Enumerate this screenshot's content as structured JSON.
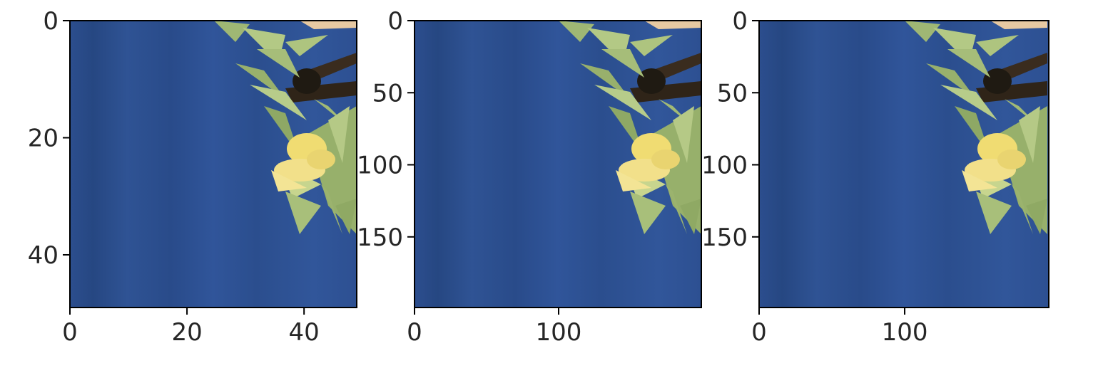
{
  "chart_data": [
    {
      "type": "image",
      "panel": 1,
      "xlim": [
        0,
        49
      ],
      "ylim": [
        49,
        0
      ],
      "xticks": [
        0,
        20,
        40
      ],
      "yticks": [
        0,
        20,
        40
      ],
      "xtick_labels": [
        "0",
        "20",
        "40"
      ],
      "ytick_labels": [
        "0",
        "20",
        "40"
      ],
      "image_content": "blue sky with yellow-green foliage and flowers at right edge",
      "sky_color": "#2c4e8c",
      "title": "",
      "xlabel": "",
      "ylabel": ""
    },
    {
      "type": "image",
      "panel": 2,
      "xlim": [
        0,
        199
      ],
      "ylim": [
        199,
        0
      ],
      "xticks": [
        0,
        100
      ],
      "yticks": [
        0,
        50,
        100,
        150
      ],
      "xtick_labels": [
        "0",
        "100"
      ],
      "ytick_labels": [
        "0",
        "50",
        "100",
        "150"
      ],
      "image_content": "upscaled blue sky with yellow-green foliage and flowers at right edge",
      "sky_color": "#2c4e8c",
      "title": "",
      "xlabel": "",
      "ylabel": ""
    },
    {
      "type": "image",
      "panel": 3,
      "xlim": [
        0,
        199
      ],
      "ylim": [
        199,
        0
      ],
      "xticks": [
        0,
        100
      ],
      "yticks": [
        0,
        50,
        100,
        150
      ],
      "xtick_labels": [
        "0",
        "100"
      ],
      "ytick_labels": [
        "0",
        "50",
        "100",
        "150"
      ],
      "image_content": "upscaled blue sky with yellow-green foliage and flowers at right edge",
      "sky_color": "#2c4e8c",
      "title": "",
      "xlabel": "",
      "ylabel": ""
    }
  ],
  "colors": {
    "sky_dark": "#2a4a86",
    "sky_light": "#32579a",
    "leaf": "#a9c07a",
    "leaf_dark": "#6d8a4a",
    "flower": "#f0de7a",
    "branch": "#3a2c1e",
    "trunk_light": "#e7c9a2"
  }
}
